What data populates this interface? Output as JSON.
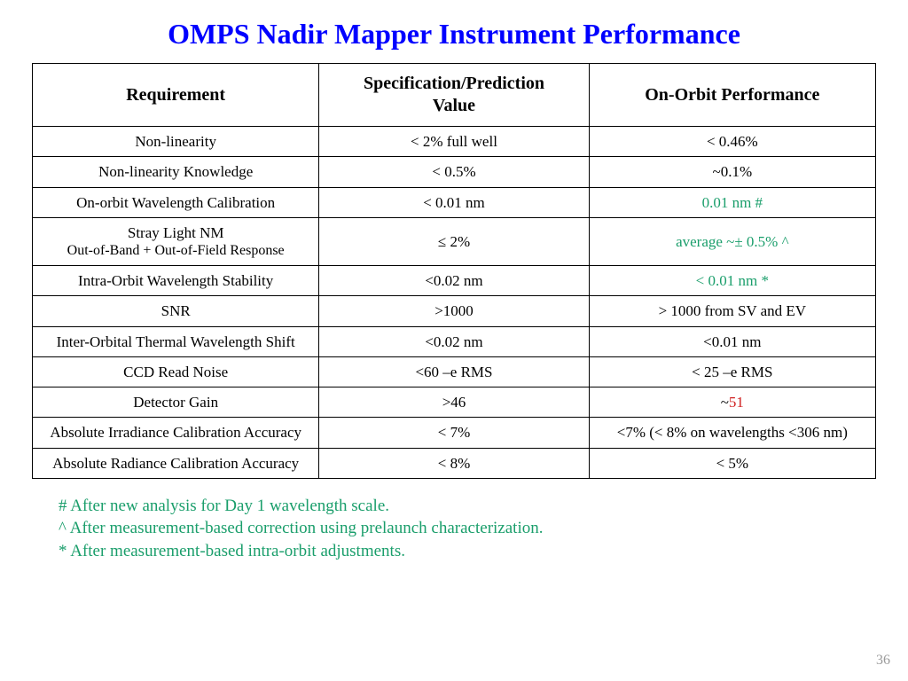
{
  "title": "OMPS Nadir Mapper Instrument Performance",
  "page_number": "36",
  "colors": {
    "title": "#0000ff",
    "highlight_green": "#1a9e6b",
    "highlight_red": "#d02020",
    "border": "#000000",
    "pagenum": "#9a9a9a"
  },
  "table": {
    "headers": [
      "Requirement",
      "Specification/Prediction Value",
      "On-Orbit Performance"
    ],
    "rows": [
      {
        "req": "Non-linearity",
        "spec": "< 2% full well",
        "perf": "< 0.46%",
        "perf_color": "black"
      },
      {
        "req": "Non-linearity Knowledge",
        "spec": "< 0.5%",
        "perf": "~0.1%",
        "perf_color": "black"
      },
      {
        "req": "On-orbit Wavelength Calibration",
        "spec": "< 0.01 nm",
        "perf": "0.01 nm #",
        "perf_color": "green"
      },
      {
        "req": "Stray Light NM",
        "req_sub": "Out-of-Band + Out-of-Field Response",
        "spec": "≤ 2%",
        "perf": "average ~± 0.5% ^",
        "perf_color": "green"
      },
      {
        "req": "Intra-Orbit Wavelength Stability",
        "spec": "<0.02 nm",
        "perf": "< 0.01 nm *",
        "perf_color": "green"
      },
      {
        "req": "SNR",
        "spec": ">1000",
        "perf": "> 1000 from SV and EV",
        "perf_color": "black"
      },
      {
        "req": "Inter-Orbital Thermal Wavelength Shift",
        "spec": "<0.02 nm",
        "perf": "<0.01 nm",
        "perf_color": "black"
      },
      {
        "req": "CCD Read Noise",
        "spec": "<60 –e RMS",
        "perf": "< 25 –e RMS",
        "perf_color": "black"
      },
      {
        "req": "Detector Gain",
        "spec": ">46",
        "perf_prefix": "~",
        "perf": "51",
        "perf_color": "red"
      },
      {
        "req": "Absolute Irradiance Calibration Accuracy",
        "spec": "< 7%",
        "perf": "<7%  (< 8% on wavelengths <306 nm)",
        "perf_color": "black"
      },
      {
        "req": "Absolute Radiance Calibration Accuracy",
        "spec": "< 8%",
        "perf": "< 5%",
        "perf_color": "black"
      }
    ]
  },
  "footnotes": [
    "# After new analysis for Day 1 wavelength scale.",
    "^ After measurement-based correction using prelaunch characterization.",
    "* After measurement-based intra-orbit adjustments."
  ]
}
